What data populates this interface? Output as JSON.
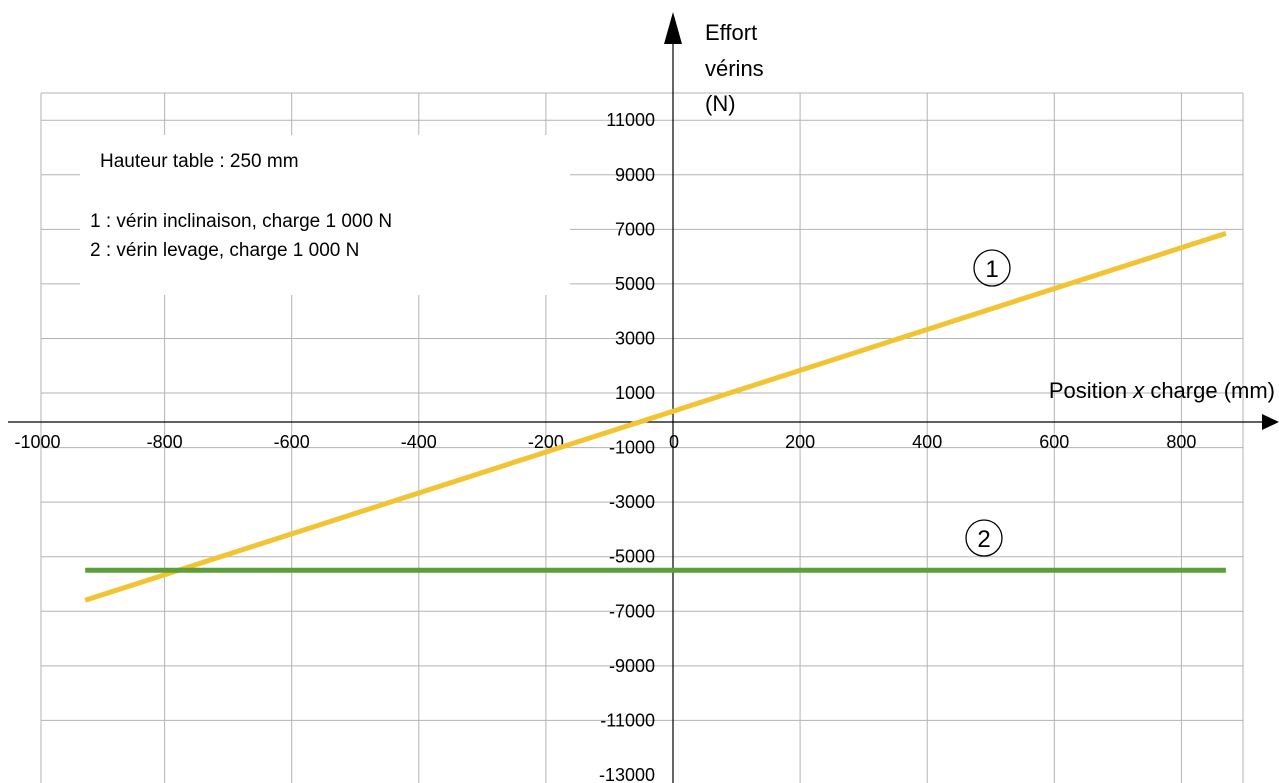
{
  "chart_data": {
    "type": "line",
    "x_axis_label": "Position x charge (mm)",
    "x_axis_label_parts": {
      "before": "Position ",
      "italic": "x",
      "after": " charge (mm)"
    },
    "y_axis_label_lines": [
      "Effort",
      "vérins",
      "(N)"
    ],
    "xlim": [
      -1000,
      900
    ],
    "ylim": [
      -13000,
      12000
    ],
    "x_ticks": [
      -1000,
      -800,
      -600,
      -400,
      -200,
      0,
      200,
      400,
      600,
      800
    ],
    "y_ticks": [
      11000,
      9000,
      7000,
      5000,
      3000,
      1000,
      -1000,
      -3000,
      -5000,
      -7000,
      -9000,
      -11000,
      -13000
    ],
    "grid": true,
    "legend_position": "top-left",
    "annotations": [
      "Hauteur table : 250 mm",
      "1 : vérin inclinaison, charge 1 000 N",
      "2 : vérin levage, charge 1 000 N"
    ],
    "series": [
      {
        "name": "1",
        "color": "#f2c433",
        "x": [
          -925,
          870
        ],
        "y": [
          -6600,
          6850
        ]
      },
      {
        "name": "2",
        "color": "#5c9e37",
        "x": [
          -925,
          870
        ],
        "y": [
          -5500,
          -5500
        ]
      }
    ]
  }
}
